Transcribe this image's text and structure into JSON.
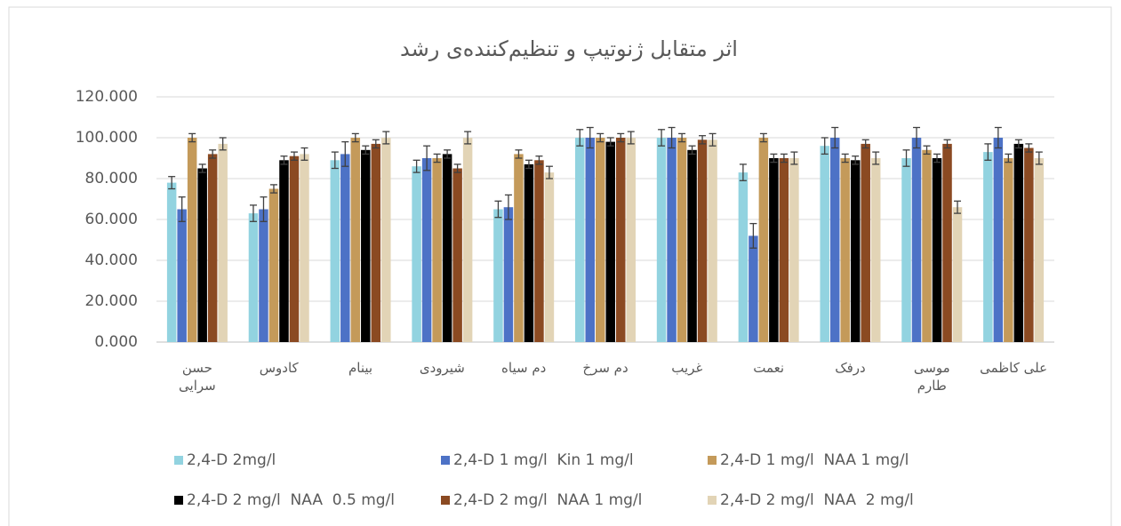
{
  "chart_data": {
    "type": "bar",
    "title": "اثر متقابل ژنوتیپ و تنظیم‌کننده‌ی رشد",
    "categories": [
      "حسن\nسرایی",
      "کادوس",
      "بینام",
      "شیرودی",
      "دم سیاه",
      "دم سرخ",
      "غریب",
      "نعمت",
      "درفک",
      "موسی\nطارم",
      "علی کاظمی"
    ],
    "series": [
      {
        "name": "2,4-D 2mg/l",
        "color": "#92d3e0",
        "values": [
          78,
          63,
          89,
          86,
          65,
          100,
          100,
          83,
          96,
          90,
          93
        ],
        "errors": [
          3,
          4,
          4,
          3,
          4,
          4,
          4,
          4,
          4,
          4,
          4
        ]
      },
      {
        "name": "2,4-D 1 mg/l  Kin 1 mg/l",
        "color": "#4d72c6",
        "values": [
          65,
          65,
          92,
          90,
          66,
          100,
          100,
          52,
          100,
          100,
          100
        ],
        "errors": [
          6,
          6,
          6,
          6,
          6,
          5,
          5,
          6,
          5,
          5,
          5
        ]
      },
      {
        "name": "2,4-D 1 mg/l  NAA 1 mg/l",
        "color": "#c49a5a",
        "values": [
          100,
          75,
          100,
          90,
          92,
          100,
          100,
          100,
          90,
          94,
          90
        ],
        "errors": [
          2,
          2,
          2,
          2,
          2,
          2,
          2,
          2,
          2,
          2,
          2
        ]
      },
      {
        "name": "2,4-D 2 mg/l  NAA  0.5 mg/l",
        "color": "#000000",
        "values": [
          85,
          89,
          94,
          92,
          87,
          98,
          94,
          90,
          89,
          90,
          97
        ],
        "errors": [
          2,
          2,
          2,
          2,
          2,
          2,
          2,
          2,
          2,
          2,
          2
        ]
      },
      {
        "name": "2,4-D 2 mg/l  NAA 1 mg/l",
        "color": "#8b4a22",
        "values": [
          92,
          91,
          97,
          85,
          89,
          100,
          99,
          90,
          97,
          97,
          95
        ],
        "errors": [
          2,
          2,
          2,
          2,
          2,
          2,
          2,
          2,
          2,
          2,
          2
        ]
      },
      {
        "name": "2,4-D 2 mg/l  NAA  2 mg/l",
        "color": "#e2d4b6",
        "values": [
          97,
          92,
          100,
          100,
          83,
          100,
          99,
          90,
          90,
          66,
          90
        ],
        "errors": [
          3,
          3,
          3,
          3,
          3,
          3,
          3,
          3,
          3,
          3,
          3
        ]
      }
    ],
    "ylim": [
      0,
      120
    ],
    "yticks": [
      {
        "value": 0,
        "label": "0.000"
      },
      {
        "value": 20,
        "label": "20.000"
      },
      {
        "value": 40,
        "label": "40.000"
      },
      {
        "value": 60,
        "label": "60.000"
      },
      {
        "value": 80,
        "label": "80.000"
      },
      {
        "value": 100,
        "label": "100.000"
      },
      {
        "value": 120,
        "label": "120.000"
      }
    ],
    "grid": true,
    "legend": "bottom"
  }
}
